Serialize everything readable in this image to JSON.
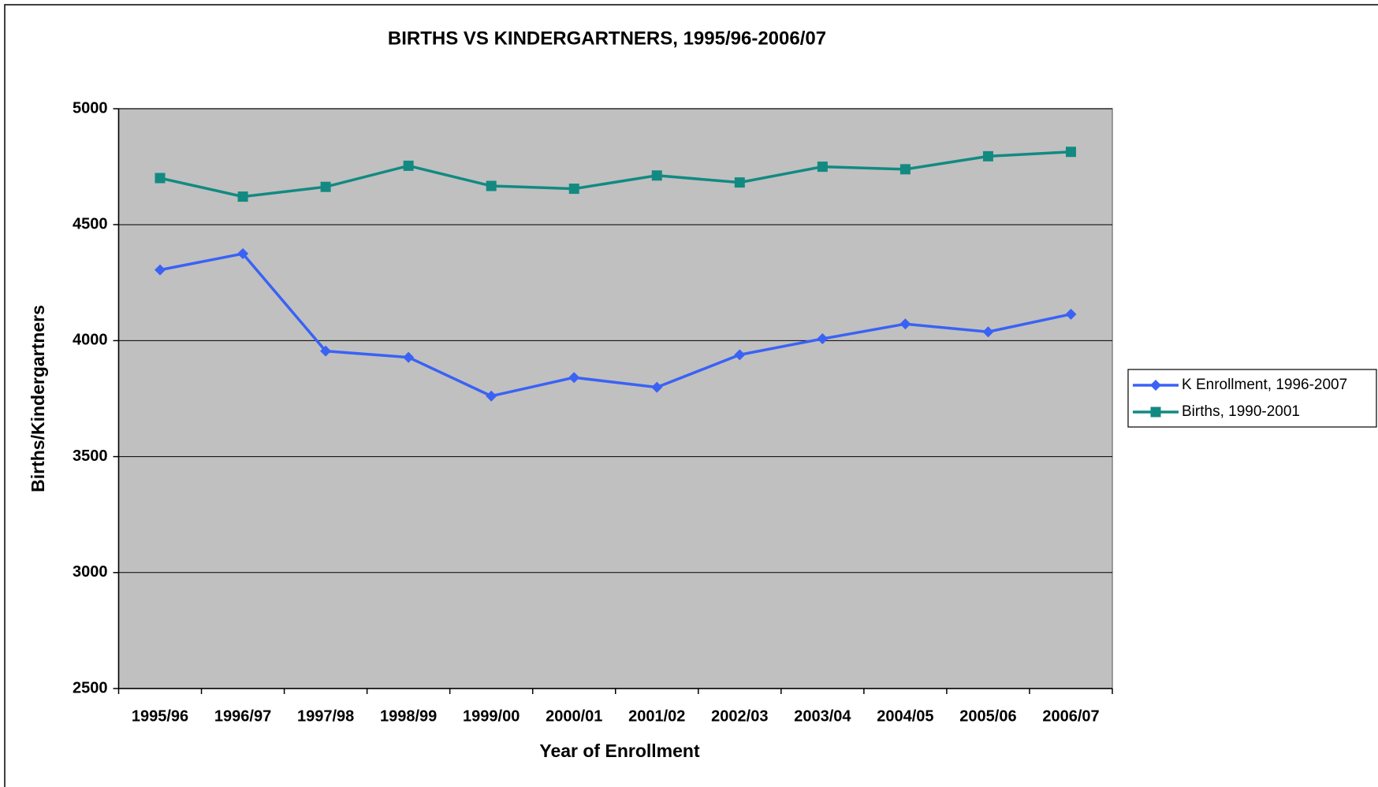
{
  "chart_data": {
    "type": "line",
    "title": "BIRTHS VS KINDERGARTNERS, 1995/96-2006/07",
    "x_label": "Year of Enrollment",
    "y_label": "Births/Kindergartners",
    "categories": [
      "1995/96",
      "1996/97",
      "1997/98",
      "1998/99",
      "1999/00",
      "2000/01",
      "2001/02",
      "2002/03",
      "2003/04",
      "2004/05",
      "2005/06",
      "2006/07"
    ],
    "series": [
      {
        "name": "K Enrollment, 1996-2007",
        "color": "#3a62f5",
        "marker": "diamond",
        "values": [
          4305,
          4375,
          3955,
          3928,
          3761,
          3841,
          3799,
          3939,
          4008,
          4072,
          4038,
          4114
        ]
      },
      {
        "name": "Births, 1990-2001",
        "color": "#128a82",
        "marker": "square",
        "values": [
          4701,
          4621,
          4663,
          4754,
          4667,
          4655,
          4712,
          4682,
          4750,
          4739,
          4795,
          4814
        ]
      }
    ],
    "ylim": [
      2500,
      5000
    ],
    "yticks": [
      2500,
      3000,
      3500,
      4000,
      4500,
      5000
    ],
    "grid": true,
    "legend": "right",
    "plot_background": "#c0c0c0"
  }
}
